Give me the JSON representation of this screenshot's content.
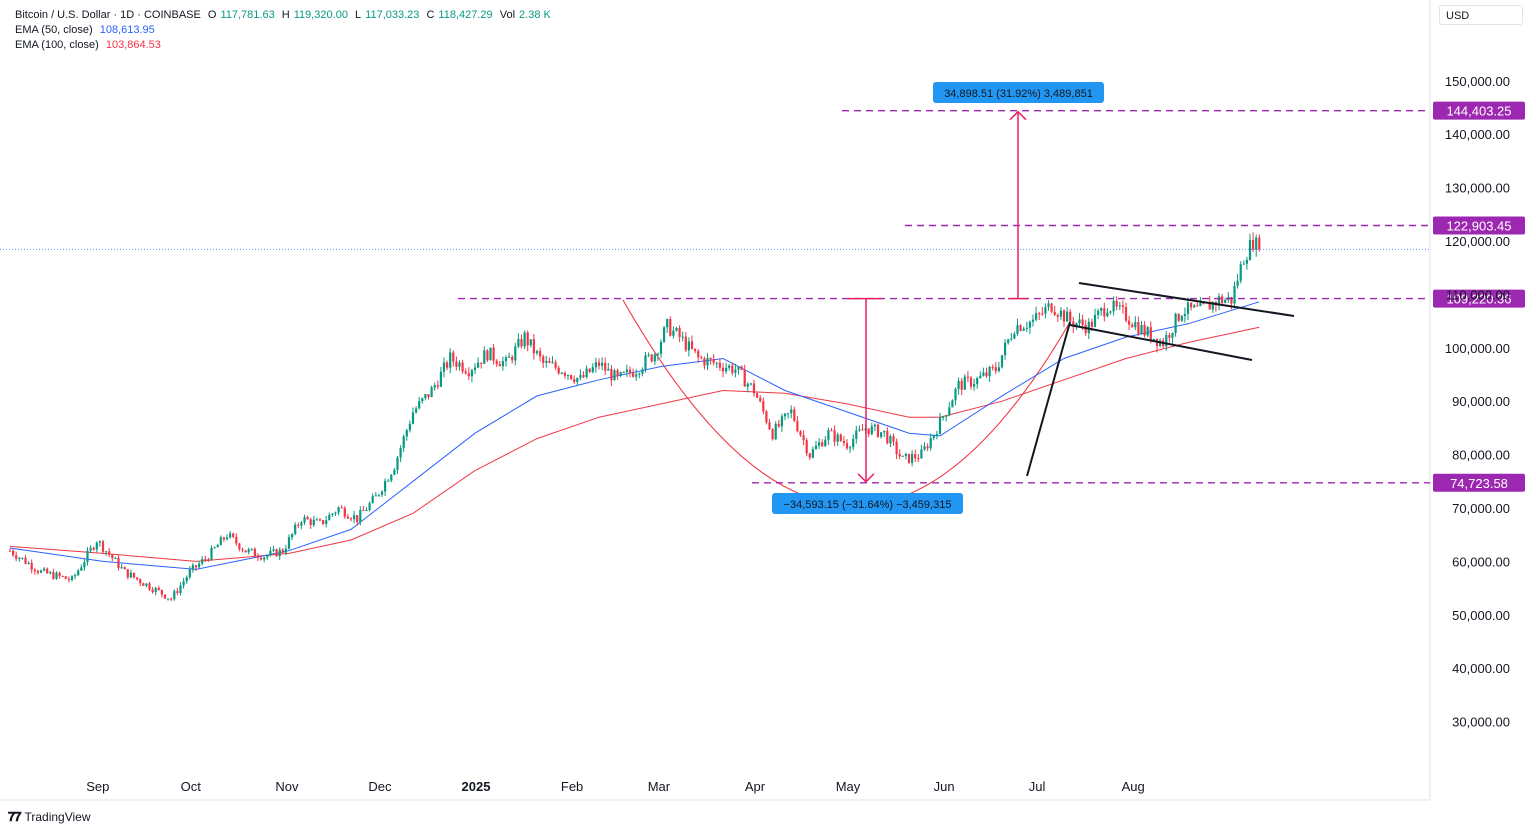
{
  "legend": {
    "symbol": "Bitcoin / U.S. Dollar · 1D · COINBASE",
    "open_label": "O",
    "open": "117,781.63",
    "high_label": "H",
    "high": "119,320.00",
    "low_label": "L",
    "low": "117,033.23",
    "close_label": "C",
    "close": "118,427.29",
    "vol_label": "Vol",
    "vol": "2.38 K",
    "ema50_label": "EMA (50, close)",
    "ema50_value": "108,613.95",
    "ema100_label": "EMA (100, close)",
    "ema100_value": "103,864.53"
  },
  "currency": "USD",
  "branding": "TradingView",
  "colors": {
    "up": "#089981",
    "down": "#f23645",
    "ema50": "#2962ff",
    "ema100": "#f23645",
    "level": "#9c27b0",
    "measure": "#2196f3"
  },
  "chart_data": {
    "type": "candlestick",
    "x_ticks": [
      "Sep",
      "Oct",
      "Nov",
      "Dec",
      "2025",
      "Feb",
      "Mar",
      "Apr",
      "May",
      "Jun",
      "Jul",
      "Aug"
    ],
    "y_ticks": [
      "30,000.00",
      "40,000.00",
      "50,000.00",
      "60,000.00",
      "70,000.00",
      "80,000.00",
      "90,000.00",
      "100,000.00",
      "110,000.00",
      "120,000.00",
      "130,000.00",
      "140,000.00",
      "150,000.00"
    ],
    "ylim": [
      20000,
      160000
    ],
    "close_path": [
      [
        0,
        62000
      ],
      [
        10,
        58000
      ],
      [
        20,
        56500
      ],
      [
        28,
        64000
      ],
      [
        37,
        58000
      ],
      [
        46,
        55000
      ],
      [
        52,
        53000
      ],
      [
        58,
        58000
      ],
      [
        64,
        61000
      ],
      [
        70,
        65000
      ],
      [
        76,
        62000
      ],
      [
        82,
        61000
      ],
      [
        88,
        62000
      ],
      [
        94,
        68000
      ],
      [
        100,
        67000
      ],
      [
        106,
        70000
      ],
      [
        112,
        68000
      ],
      [
        118,
        72000
      ],
      [
        124,
        78000
      ],
      [
        130,
        88000
      ],
      [
        136,
        92000
      ],
      [
        142,
        98000
      ],
      [
        148,
        96000
      ],
      [
        154,
        99000
      ],
      [
        160,
        97000
      ],
      [
        166,
        102000
      ],
      [
        172,
        97000
      ],
      [
        178,
        96000
      ],
      [
        184,
        94000
      ],
      [
        190,
        97000
      ],
      [
        196,
        94000
      ],
      [
        202,
        96000
      ],
      [
        208,
        99000
      ],
      [
        212,
        104000
      ],
      [
        216,
        102000
      ],
      [
        222,
        98000
      ],
      [
        228,
        97000
      ],
      [
        234,
        96000
      ],
      [
        240,
        92000
      ],
      [
        246,
        84000
      ],
      [
        252,
        88000
      ],
      [
        258,
        80000
      ],
      [
        264,
        84000
      ],
      [
        270,
        82000
      ],
      [
        276,
        85000
      ],
      [
        282,
        84000
      ],
      [
        288,
        79000
      ],
      [
        294,
        80000
      ],
      [
        300,
        86000
      ],
      [
        306,
        93000
      ],
      [
        312,
        94000
      ],
      [
        318,
        96000
      ],
      [
        324,
        104000
      ],
      [
        330,
        105000
      ],
      [
        336,
        108000
      ],
      [
        342,
        105000
      ],
      [
        348,
        104000
      ],
      [
        354,
        108000
      ],
      [
        360,
        106000
      ],
      [
        366,
        103000
      ],
      [
        372,
        101000
      ],
      [
        378,
        107000
      ],
      [
        384,
        107000
      ],
      [
        390,
        109000
      ],
      [
        394,
        109000
      ],
      [
        398,
        117000
      ],
      [
        401,
        120000
      ],
      [
        403,
        118427
      ]
    ],
    "series": [
      {
        "name": "EMA (50, close)",
        "points": [
          [
            0,
            62500
          ],
          [
            30,
            60000
          ],
          [
            60,
            58500
          ],
          [
            90,
            62000
          ],
          [
            110,
            66000
          ],
          [
            130,
            75000
          ],
          [
            150,
            84000
          ],
          [
            170,
            91000
          ],
          [
            190,
            94000
          ],
          [
            210,
            96500
          ],
          [
            230,
            98000
          ],
          [
            250,
            92000
          ],
          [
            270,
            88000
          ],
          [
            290,
            84000
          ],
          [
            300,
            83500
          ],
          [
            320,
            91000
          ],
          [
            340,
            98000
          ],
          [
            360,
            102000
          ],
          [
            380,
            104500
          ],
          [
            403,
            108614
          ]
        ]
      },
      {
        "name": "EMA (100, close)",
        "points": [
          [
            0,
            62800
          ],
          [
            30,
            61500
          ],
          [
            60,
            60000
          ],
          [
            90,
            61500
          ],
          [
            110,
            64000
          ],
          [
            130,
            69000
          ],
          [
            150,
            77000
          ],
          [
            170,
            83000
          ],
          [
            190,
            87000
          ],
          [
            210,
            89500
          ],
          [
            230,
            92000
          ],
          [
            250,
            91500
          ],
          [
            270,
            89500
          ],
          [
            290,
            87000
          ],
          [
            300,
            87000
          ],
          [
            320,
            90000
          ],
          [
            340,
            94000
          ],
          [
            360,
            98000
          ],
          [
            380,
            101000
          ],
          [
            403,
            103865
          ]
        ]
      }
    ],
    "levels": [
      "144,403.25",
      "122,903.45",
      "109,220.36",
      "74,723.58"
    ],
    "level_values": [
      144403.25,
      122903.45,
      109220.36,
      74723.58
    ],
    "annotations": {
      "measure_up": "34,898.51 (31.92%) 3,489,851",
      "measure_down": "−34,593.15 (−31.64%) −3,459,315"
    },
    "current_price": 118427.29
  }
}
